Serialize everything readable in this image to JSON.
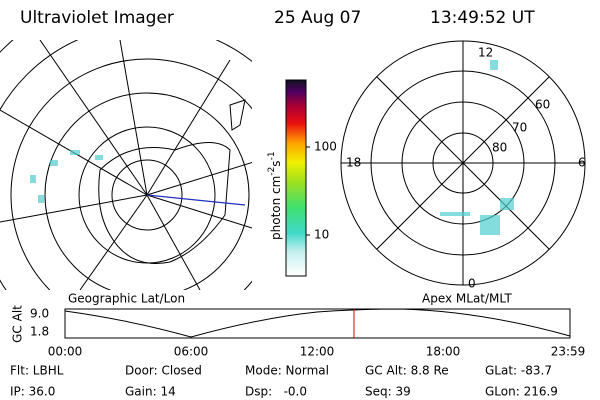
{
  "header": {
    "title": "Ultraviolet Imager",
    "date": "25 Aug 07",
    "time": "13:49:52 UT"
  },
  "left_panel": {
    "label": "Geographic Lat/Lon"
  },
  "colorbar": {
    "label_parts": [
      "photon cm",
      "-2",
      "s",
      "-1"
    ],
    "ticks": [
      "100",
      "10"
    ]
  },
  "right_panel": {
    "label": "Apex MLat/MLT",
    "lat_labels": [
      "60",
      "70",
      "80"
    ],
    "mlt_labels": [
      "12",
      "18",
      "6",
      "0"
    ]
  },
  "altitude_plot": {
    "axis_label": "GC Alt",
    "y_labels": [
      "9.0",
      "1.8"
    ],
    "x_labels": [
      "00:00",
      "06:00",
      "12:00",
      "18:00",
      "23:59"
    ]
  },
  "info": {
    "rows": [
      [
        "Flt: LBHL",
        "Door: Closed",
        "Mode: Normal",
        "GC Alt: 8.8 Re",
        "GLat: -83.7"
      ],
      [
        "IP: 36.0",
        "Gain: 14",
        "Dsp:   -0.0",
        "Seq: 39",
        "GLon: 216.9"
      ]
    ]
  }
}
